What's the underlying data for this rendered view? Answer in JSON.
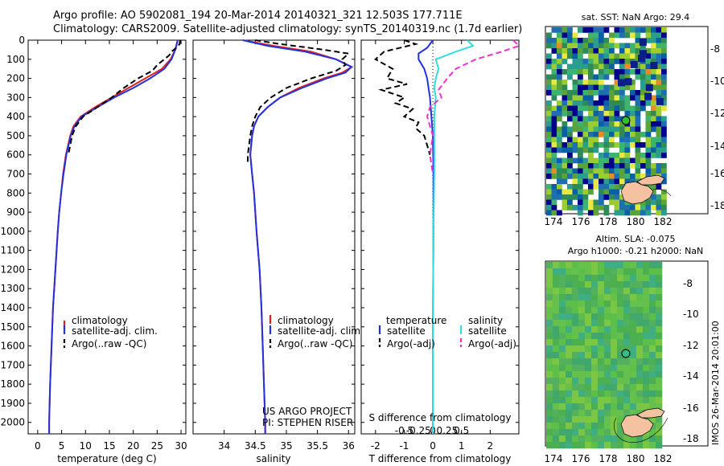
{
  "header": {
    "line1": "Argo profile: AO 5902081_194 20-Mar-2014 20140321_321 12.503S 177.711E",
    "line2": "Climatology: CARS2009. Satellite-adjusted climatology: synTS_20140319.nc (1.7d earlier)"
  },
  "colors": {
    "climatology": "#dd2222",
    "satellite": "#2233dd",
    "argo": "#000000",
    "salinity_sat": "#33dddd",
    "salinity_argo": "#ee33cc",
    "map_land": "#f4c2a0"
  },
  "chart_data": [
    {
      "type": "line",
      "id": "temperature",
      "xlabel": "temperature (deg C)",
      "ylabel": "",
      "xlim": [
        -2,
        31
      ],
      "ylim": [
        2060,
        0
      ],
      "xticks": [
        0,
        5,
        10,
        15,
        20,
        25,
        30
      ],
      "yticks": [
        0,
        100,
        200,
        300,
        400,
        500,
        600,
        700,
        800,
        900,
        1000,
        1100,
        1200,
        1300,
        1400,
        1500,
        1600,
        1700,
        1800,
        1900,
        2000
      ],
      "legend": [
        "climatology",
        "satellite-adj. clim.",
        "Argo(..raw -QC)"
      ],
      "series": [
        {
          "name": "climatology",
          "depth": [
            0,
            50,
            100,
            150,
            200,
            250,
            300,
            350,
            400,
            450,
            500,
            600,
            700,
            800,
            900,
            1000,
            1200,
            1400,
            1600,
            1800,
            2000,
            2060
          ],
          "values": [
            29.3,
            28.8,
            27.8,
            26.0,
            22.5,
            19.0,
            15.5,
            12.0,
            9.0,
            7.5,
            6.8,
            5.9,
            5.3,
            4.9,
            4.5,
            4.2,
            3.7,
            3.2,
            2.9,
            2.6,
            2.4,
            2.4
          ]
        },
        {
          "name": "satellite-adj. clim.",
          "depth": [
            0,
            50,
            100,
            150,
            200,
            250,
            300,
            350,
            400,
            450,
            500,
            600,
            700,
            800,
            900,
            1000,
            1200,
            1400,
            1600,
            1800,
            2000,
            2060
          ],
          "values": [
            29.3,
            28.8,
            28.0,
            26.5,
            23.5,
            20.0,
            16.0,
            12.5,
            9.2,
            7.7,
            6.9,
            6.0,
            5.4,
            4.9,
            4.5,
            4.2,
            3.7,
            3.2,
            2.9,
            2.6,
            2.4,
            2.4
          ]
        },
        {
          "name": "Argo(..raw -QC)",
          "depth": [
            0,
            20,
            40,
            60,
            80,
            100,
            130,
            160,
            200,
            250,
            300,
            350,
            400,
            450,
            500,
            550,
            600
          ],
          "values": [
            29.8,
            29.7,
            29.0,
            28.0,
            27.5,
            26.5,
            25.0,
            24.0,
            21.0,
            18.0,
            15.5,
            12.5,
            9.5,
            8.0,
            7.2,
            6.8,
            6.4
          ]
        }
      ]
    },
    {
      "type": "line",
      "id": "salinity",
      "xlabel": "salinity",
      "ylabel": "",
      "xlim": [
        33.5,
        36.1
      ],
      "ylim": [
        2060,
        0
      ],
      "xticks": [
        34,
        34.5,
        35,
        35.5,
        36
      ],
      "legend": [
        "climatology",
        "satellite-adj. clim.",
        "Argo(..raw -QC)"
      ],
      "annotation": [
        "US ARGO PROJECT",
        "PI: STEPHEN RISER"
      ],
      "series": [
        {
          "name": "climatology",
          "depth": [
            0,
            30,
            60,
            100,
            140,
            170,
            200,
            250,
            300,
            350,
            400,
            450,
            500,
            600,
            700,
            800,
            1000,
            1200,
            1400,
            1600,
            1800,
            2000,
            2060
          ],
          "values": [
            34.3,
            34.8,
            35.4,
            35.8,
            36.05,
            35.9,
            35.6,
            35.2,
            34.9,
            34.7,
            34.55,
            34.48,
            34.45,
            34.42,
            34.45,
            34.48,
            34.52,
            34.57,
            34.6,
            34.62,
            34.64,
            34.66,
            34.66
          ]
        },
        {
          "name": "satellite-adj. clim.",
          "depth": [
            0,
            30,
            60,
            100,
            140,
            170,
            200,
            250,
            300,
            350,
            400,
            450,
            500,
            600,
            700,
            800,
            1000,
            1200,
            1400,
            1600,
            1800,
            2000,
            2060
          ],
          "values": [
            34.3,
            34.7,
            35.3,
            35.8,
            36.05,
            35.95,
            35.65,
            35.25,
            34.9,
            34.7,
            34.55,
            34.48,
            34.45,
            34.42,
            34.45,
            34.48,
            34.52,
            34.57,
            34.6,
            34.62,
            34.64,
            34.66,
            34.66
          ]
        },
        {
          "name": "Argo(..raw -QC)",
          "depth": [
            0,
            20,
            50,
            70,
            100,
            130,
            160,
            200,
            250,
            300,
            350,
            400,
            450,
            500,
            550,
            600,
            650
          ],
          "values": [
            34.5,
            34.9,
            35.6,
            36.0,
            35.9,
            35.95,
            35.8,
            35.4,
            35.0,
            34.75,
            34.58,
            34.5,
            34.45,
            34.42,
            34.4,
            34.38,
            34.38
          ]
        }
      ]
    },
    {
      "type": "line",
      "id": "difference",
      "xlabel": "T difference from climatology",
      "xlabel_top": "S difference from climatology",
      "xlim": [
        -2.5,
        3.0
      ],
      "ylim": [
        2060,
        0
      ],
      "xticks": [
        -2,
        -1,
        0,
        1,
        2
      ],
      "sxticks": [
        -0.5,
        -0.25,
        0,
        0.25,
        0.5
      ],
      "legend_headers": [
        "temperature",
        "salinity"
      ],
      "legend": [
        "satellite",
        "Argo(-adj)",
        "satellite",
        "Argo(-adj)"
      ],
      "series": [
        {
          "name": "satellite",
          "quantity": "temperature",
          "depth": [
            0,
            40,
            70,
            100,
            150,
            200,
            250,
            300,
            400,
            500,
            700,
            1000,
            1500,
            2000,
            2060
          ],
          "values": [
            0.0,
            -0.2,
            -0.5,
            -0.5,
            -0.3,
            -0.2,
            -0.15,
            -0.1,
            -0.05,
            0.0,
            0.02,
            0.02,
            0.0,
            0.0,
            0.0
          ]
        },
        {
          "name": "Argo(-adj)",
          "quantity": "temperature",
          "depth": [
            0,
            20,
            60,
            100,
            150,
            200,
            230,
            260,
            300,
            330,
            360,
            400,
            430,
            460,
            500,
            550,
            600
          ],
          "values": [
            -1.0,
            -0.6,
            -1.7,
            -2.0,
            -1.4,
            -1.6,
            -0.9,
            -1.8,
            -1.0,
            -1.3,
            -0.7,
            -1.0,
            -0.5,
            -0.6,
            -0.3,
            -0.2,
            -0.1
          ]
        },
        {
          "name": "satellite",
          "quantity": "salinity",
          "depth": [
            0,
            30,
            60,
            100,
            150,
            200,
            250,
            300,
            400,
            500,
            700,
            1000,
            1500,
            2000,
            2060
          ],
          "values": [
            1.2,
            1.4,
            0.8,
            0.1,
            0.2,
            0.1,
            0.05,
            0.1,
            0.05,
            0.05,
            0.05,
            0.02,
            0.0,
            0.0,
            0.0
          ]
        },
        {
          "name": "Argo(-adj)",
          "quantity": "salinity",
          "depth": [
            0,
            30,
            60,
            100,
            150,
            200,
            260,
            300,
            350,
            400,
            500,
            600,
            700
          ],
          "values": [
            2.8,
            3.0,
            2.4,
            1.5,
            0.8,
            0.5,
            0.2,
            0.3,
            -0.1,
            -0.2,
            0.0,
            -0.1,
            0.0
          ]
        }
      ]
    }
  ],
  "maps": {
    "sst": {
      "title": "sat. SST: NaN Argo: 29.4",
      "xticks": [
        "174",
        "176",
        "178",
        "180",
        "182"
      ],
      "yticks": [
        "-8",
        "-10",
        "-12",
        "-14",
        "-16",
        "-18"
      ]
    },
    "sla": {
      "title_line1": "Altim. SLA: -0.075",
      "title_line2": "Argo h1000: -0.21 h2000: NaN",
      "xticks": [
        "174",
        "176",
        "178",
        "180",
        "182"
      ],
      "yticks": [
        "-8",
        "-10",
        "-12",
        "-14",
        "-16",
        "-18"
      ]
    }
  },
  "footer": {
    "stamp": "IMOS 26-Mar-2014 20:01:00"
  }
}
